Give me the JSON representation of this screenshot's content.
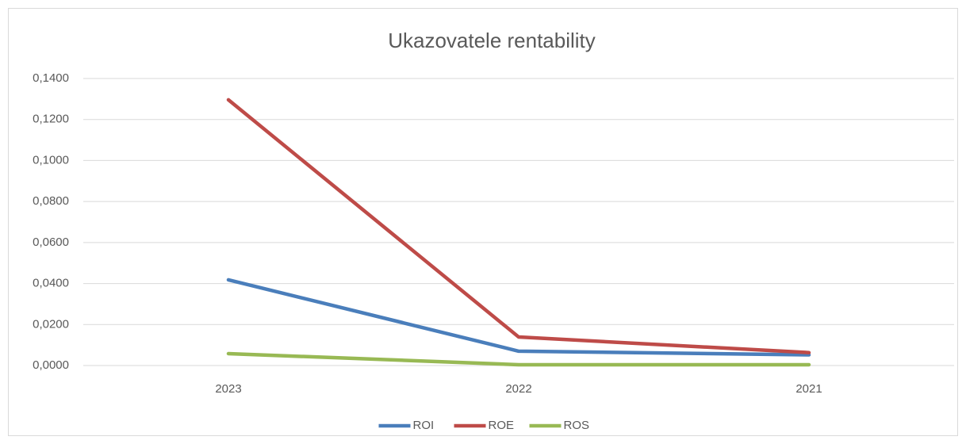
{
  "chart_data": {
    "type": "line",
    "title": "Ukazovatele rentability",
    "categories": [
      "2023",
      "2022",
      "2021"
    ],
    "series": [
      {
        "name": "ROI",
        "color": "#4a7ebb",
        "values": [
          0.0418,
          0.007,
          0.0052
        ]
      },
      {
        "name": "ROE",
        "color": "#be4b48",
        "values": [
          0.1296,
          0.0139,
          0.0063
        ]
      },
      {
        "name": "ROS",
        "color": "#98b954",
        "values": [
          0.0058,
          0.0004,
          0.0004
        ]
      }
    ],
    "ylim": [
      0,
      0.14
    ],
    "yticks": [
      {
        "value": 0,
        "label": "0,0000"
      },
      {
        "value": 0.02,
        "label": "0,0200"
      },
      {
        "value": 0.04,
        "label": "0,0400"
      },
      {
        "value": 0.06,
        "label": "0,0600"
      },
      {
        "value": 0.08,
        "label": "0,0800"
      },
      {
        "value": 0.1,
        "label": "0,1000"
      },
      {
        "value": 0.12,
        "label": "0,1200"
      },
      {
        "value": 0.14,
        "label": "0,1400"
      }
    ],
    "grid": true,
    "legend": "bottom"
  }
}
